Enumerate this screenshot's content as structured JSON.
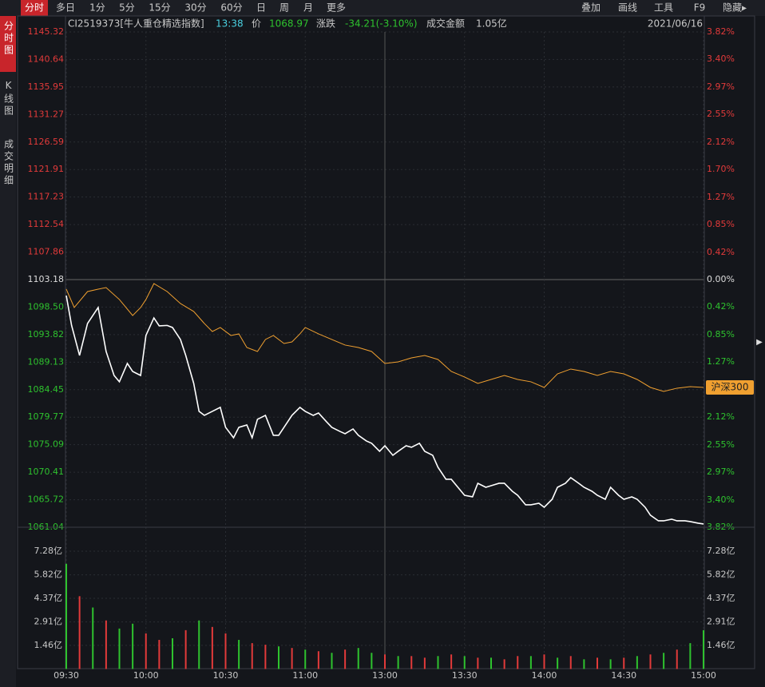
{
  "toolbar": {
    "tabs": [
      "分时",
      "多日",
      "1分",
      "5分",
      "15分",
      "30分",
      "60分",
      "日",
      "周",
      "月",
      "更多"
    ],
    "tools": [
      "叠加",
      "画线",
      "工具",
      "F9",
      "隐藏▸"
    ]
  },
  "sidebar": [
    "分时图",
    "K线图",
    "成交明细"
  ],
  "header": {
    "name": "CI2519373[牛人重仓精选指数]",
    "time": "13:38",
    "price_label": "价",
    "price": "1068.97",
    "change_label": "涨跌",
    "change": "-34.21(-3.10%)",
    "amount_label": "成交金额",
    "amount": "1.05亿",
    "date": "2021/06/16"
  },
  "chart_data": {
    "type": "line",
    "xlim": [
      0,
      240
    ],
    "xticks": [
      {
        "value": 0,
        "label": "09:30"
      },
      {
        "value": 30,
        "label": "10:00"
      },
      {
        "value": 60,
        "label": "10:30"
      },
      {
        "value": 90,
        "label": "11:00"
      },
      {
        "value": 120,
        "label": "13:00"
      },
      {
        "value": 150,
        "label": "13:30"
      },
      {
        "value": 180,
        "label": "14:00"
      },
      {
        "value": 210,
        "label": "14:30"
      },
      {
        "value": 240,
        "label": "15:00"
      }
    ],
    "ylim": [
      1061.04,
      1145.32
    ],
    "yticks": [
      1145.32,
      1140.64,
      1135.95,
      1131.27,
      1126.59,
      1121.91,
      1117.23,
      1112.54,
      1107.86,
      1103.18,
      {
        "value": 1098.5,
        "label": "1098.50"
      },
      1093.82,
      1089.13,
      1084.45,
      1079.77,
      1075.09,
      1070.41,
      1065.72,
      1061.04
    ],
    "y2lim": [
      -3.82,
      3.82
    ],
    "y2ticks": [
      {
        "value": 3.82,
        "label": "3.82%"
      },
      {
        "value": 3.4,
        "label": "3.40%"
      },
      {
        "value": 2.97,
        "label": "2.97%"
      },
      {
        "value": 2.55,
        "label": "2.55%"
      },
      {
        "value": 2.12,
        "label": "2.12%"
      },
      {
        "value": 1.7,
        "label": "1.70%"
      },
      {
        "value": 1.27,
        "label": "1.27%"
      },
      {
        "value": 0.85,
        "label": "0.85%"
      },
      {
        "value": 0.42,
        "label": "0.42%"
      },
      {
        "value": 0,
        "label": "0.00%"
      },
      {
        "value": -0.42,
        "label": "0.42%"
      },
      {
        "value": -0.85,
        "label": "0.85%"
      },
      {
        "value": -1.27,
        "label": "1.27%"
      },
      {
        "value": -2.12,
        "label": "2.12%"
      },
      {
        "value": -2.55,
        "label": "2.55%"
      },
      {
        "value": -2.97,
        "label": "2.97%"
      },
      {
        "value": -3.4,
        "label": "3.40%"
      },
      {
        "value": -3.82,
        "label": "3.82%"
      }
    ],
    "x": [
      0,
      2,
      5,
      8,
      10,
      12,
      15,
      18,
      20,
      23,
      25,
      28,
      30,
      33,
      35,
      38,
      40,
      43,
      45,
      48,
      50,
      52,
      55,
      58,
      60,
      63,
      65,
      68,
      70,
      72,
      75,
      78,
      80,
      83,
      85,
      88,
      90,
      93,
      95,
      98,
      100,
      103,
      105,
      108,
      110,
      113,
      115,
      118,
      120,
      123,
      125,
      128,
      130,
      133,
      135,
      138,
      140,
      143,
      145,
      148,
      150,
      153,
      155,
      158,
      160,
      163,
      165,
      168,
      170,
      173,
      175,
      178,
      180,
      183,
      185,
      188,
      190,
      193,
      195,
      198,
      200,
      203,
      205,
      208,
      210,
      213,
      215,
      218,
      220,
      223,
      225,
      228,
      230,
      233,
      235,
      238,
      240
    ],
    "series": [
      {
        "color": "#ffffff",
        "values": [
          1100.46,
          1095.38,
          1090.27,
          1095.71,
          1097.07,
          1098.43,
          1090.95,
          1086.87,
          1085.79,
          1088.91,
          1087.55,
          1086.87,
          1093.67,
          1096.66,
          1095.3,
          1095.38,
          1095.03,
          1092.99,
          1090.27,
          1085.51,
          1080.76,
          1080.08,
          1080.76,
          1081.44,
          1078.04,
          1076.27,
          1078.04,
          1078.44,
          1076.27,
          1079.4,
          1080.08,
          1076.68,
          1076.68,
          1078.72,
          1080.08,
          1081.44,
          1080.76,
          1080.08,
          1080.48,
          1078.99,
          1078.04,
          1077.36,
          1076.95,
          1077.76,
          1076.68,
          1075.73,
          1075.32,
          1073.96,
          1074.91,
          1073.28,
          1073.96,
          1074.91,
          1074.64,
          1075.32,
          1073.96,
          1073.28,
          1071.24,
          1069.2,
          1069.2,
          1067.57,
          1066.48,
          1066.21,
          1068.52,
          1067.84,
          1068.11,
          1068.52,
          1068.52,
          1067.16,
          1066.48,
          1064.85,
          1064.85,
          1065.12,
          1064.44,
          1065.8,
          1067.84,
          1068.52,
          1069.47,
          1068.52,
          1067.84,
          1067.16,
          1066.48,
          1065.8,
          1067.84,
          1066.48,
          1065.8,
          1066.21,
          1065.8,
          1064.44,
          1063.09,
          1062.13,
          1062.13,
          1062.41,
          1062.13,
          1062.13,
          1062.0,
          1061.73,
          1061.59
        ]
      },
      {
        "name": "沪深300",
        "color": "#f0a030",
        "x": [
          0,
          3,
          8,
          12,
          15,
          20,
          25,
          28,
          30,
          33,
          38,
          43,
          48,
          52,
          55,
          58,
          62,
          65,
          68,
          72,
          75,
          78,
          82,
          85,
          88,
          90,
          95,
          100,
          105,
          110,
          115,
          120,
          125,
          130,
          135,
          140,
          145,
          150,
          155,
          160,
          165,
          170,
          175,
          180,
          185,
          190,
          195,
          200,
          205,
          210,
          215,
          220,
          225,
          230,
          235,
          240
        ],
        "values": [
          1101.55,
          1098.43,
          1101.14,
          1101.55,
          1101.82,
          1099.79,
          1097.07,
          1098.43,
          1099.79,
          1102.5,
          1101.14,
          1099.11,
          1097.75,
          1095.71,
          1094.35,
          1095.03,
          1093.67,
          1093.94,
          1091.63,
          1090.95,
          1092.99,
          1093.67,
          1092.31,
          1092.58,
          1093.94,
          1095.03,
          1093.94,
          1092.99,
          1092.04,
          1091.63,
          1090.95,
          1088.91,
          1089.18,
          1089.86,
          1090.27,
          1089.59,
          1087.55,
          1086.6,
          1085.51,
          1086.19,
          1086.87,
          1086.19,
          1085.79,
          1084.83,
          1087.14,
          1087.96,
          1087.55,
          1086.87,
          1087.55,
          1087.14,
          1086.19,
          1084.83,
          1084.15,
          1084.7,
          1084.97,
          1084.83
        ]
      }
    ],
    "volume": {
      "ylim": [
        0,
        8.76
      ],
      "yticks": [
        {
          "value": 7.28,
          "label": "7.28亿"
        },
        {
          "value": 5.82,
          "label": "5.82亿"
        },
        {
          "value": 4.37,
          "label": "4.37亿"
        },
        {
          "value": 2.91,
          "label": "2.91亿"
        },
        {
          "value": 1.46,
          "label": "1.46亿"
        }
      ],
      "x": [
        0,
        5,
        10,
        15,
        20,
        25,
        30,
        35,
        40,
        45,
        50,
        55,
        60,
        65,
        70,
        75,
        80,
        85,
        90,
        95,
        100,
        105,
        110,
        115,
        120,
        125,
        130,
        135,
        140,
        145,
        150,
        155,
        160,
        165,
        170,
        175,
        180,
        185,
        190,
        195,
        200,
        205,
        210,
        215,
        220,
        225,
        230,
        235,
        240
      ],
      "values": [
        6.5,
        4.5,
        3.8,
        3.0,
        2.5,
        2.8,
        2.2,
        1.8,
        1.9,
        2.4,
        3.0,
        2.6,
        2.2,
        1.8,
        1.6,
        1.5,
        1.4,
        1.3,
        1.2,
        1.1,
        1.0,
        1.2,
        1.3,
        1.0,
        0.9,
        0.8,
        0.8,
        0.7,
        0.8,
        0.9,
        0.8,
        0.7,
        0.7,
        0.6,
        0.8,
        0.8,
        0.9,
        0.7,
        0.8,
        0.6,
        0.7,
        0.6,
        0.7,
        0.8,
        0.9,
        1.0,
        1.2,
        1.6,
        2.4
      ],
      "colors": [
        "#2ec22e",
        "#e23a3a",
        "#2ec22e",
        "#e23a3a",
        "#2ec22e",
        "#2ec22e",
        "#e23a3a",
        "#e23a3a",
        "#2ec22e",
        "#e23a3a",
        "#2ec22e",
        "#e23a3a",
        "#e23a3a",
        "#2ec22e",
        "#e23a3a",
        "#e23a3a",
        "#2ec22e",
        "#e23a3a",
        "#2ec22e",
        "#e23a3a",
        "#2ec22e",
        "#e23a3a",
        "#2ec22e",
        "#2ec22e",
        "#e23a3a",
        "#2ec22e",
        "#e23a3a",
        "#e23a3a",
        "#2ec22e",
        "#e23a3a",
        "#2ec22e",
        "#e23a3a",
        "#2ec22e",
        "#e23a3a",
        "#e23a3a",
        "#2ec22e",
        "#e23a3a",
        "#2ec22e",
        "#e23a3a",
        "#2ec22e",
        "#e23a3a",
        "#2ec22e",
        "#e23a3a",
        "#2ec22e",
        "#e23a3a",
        "#2ec22e",
        "#e23a3a",
        "#2ec22e",
        "#2ec22e"
      ]
    }
  }
}
